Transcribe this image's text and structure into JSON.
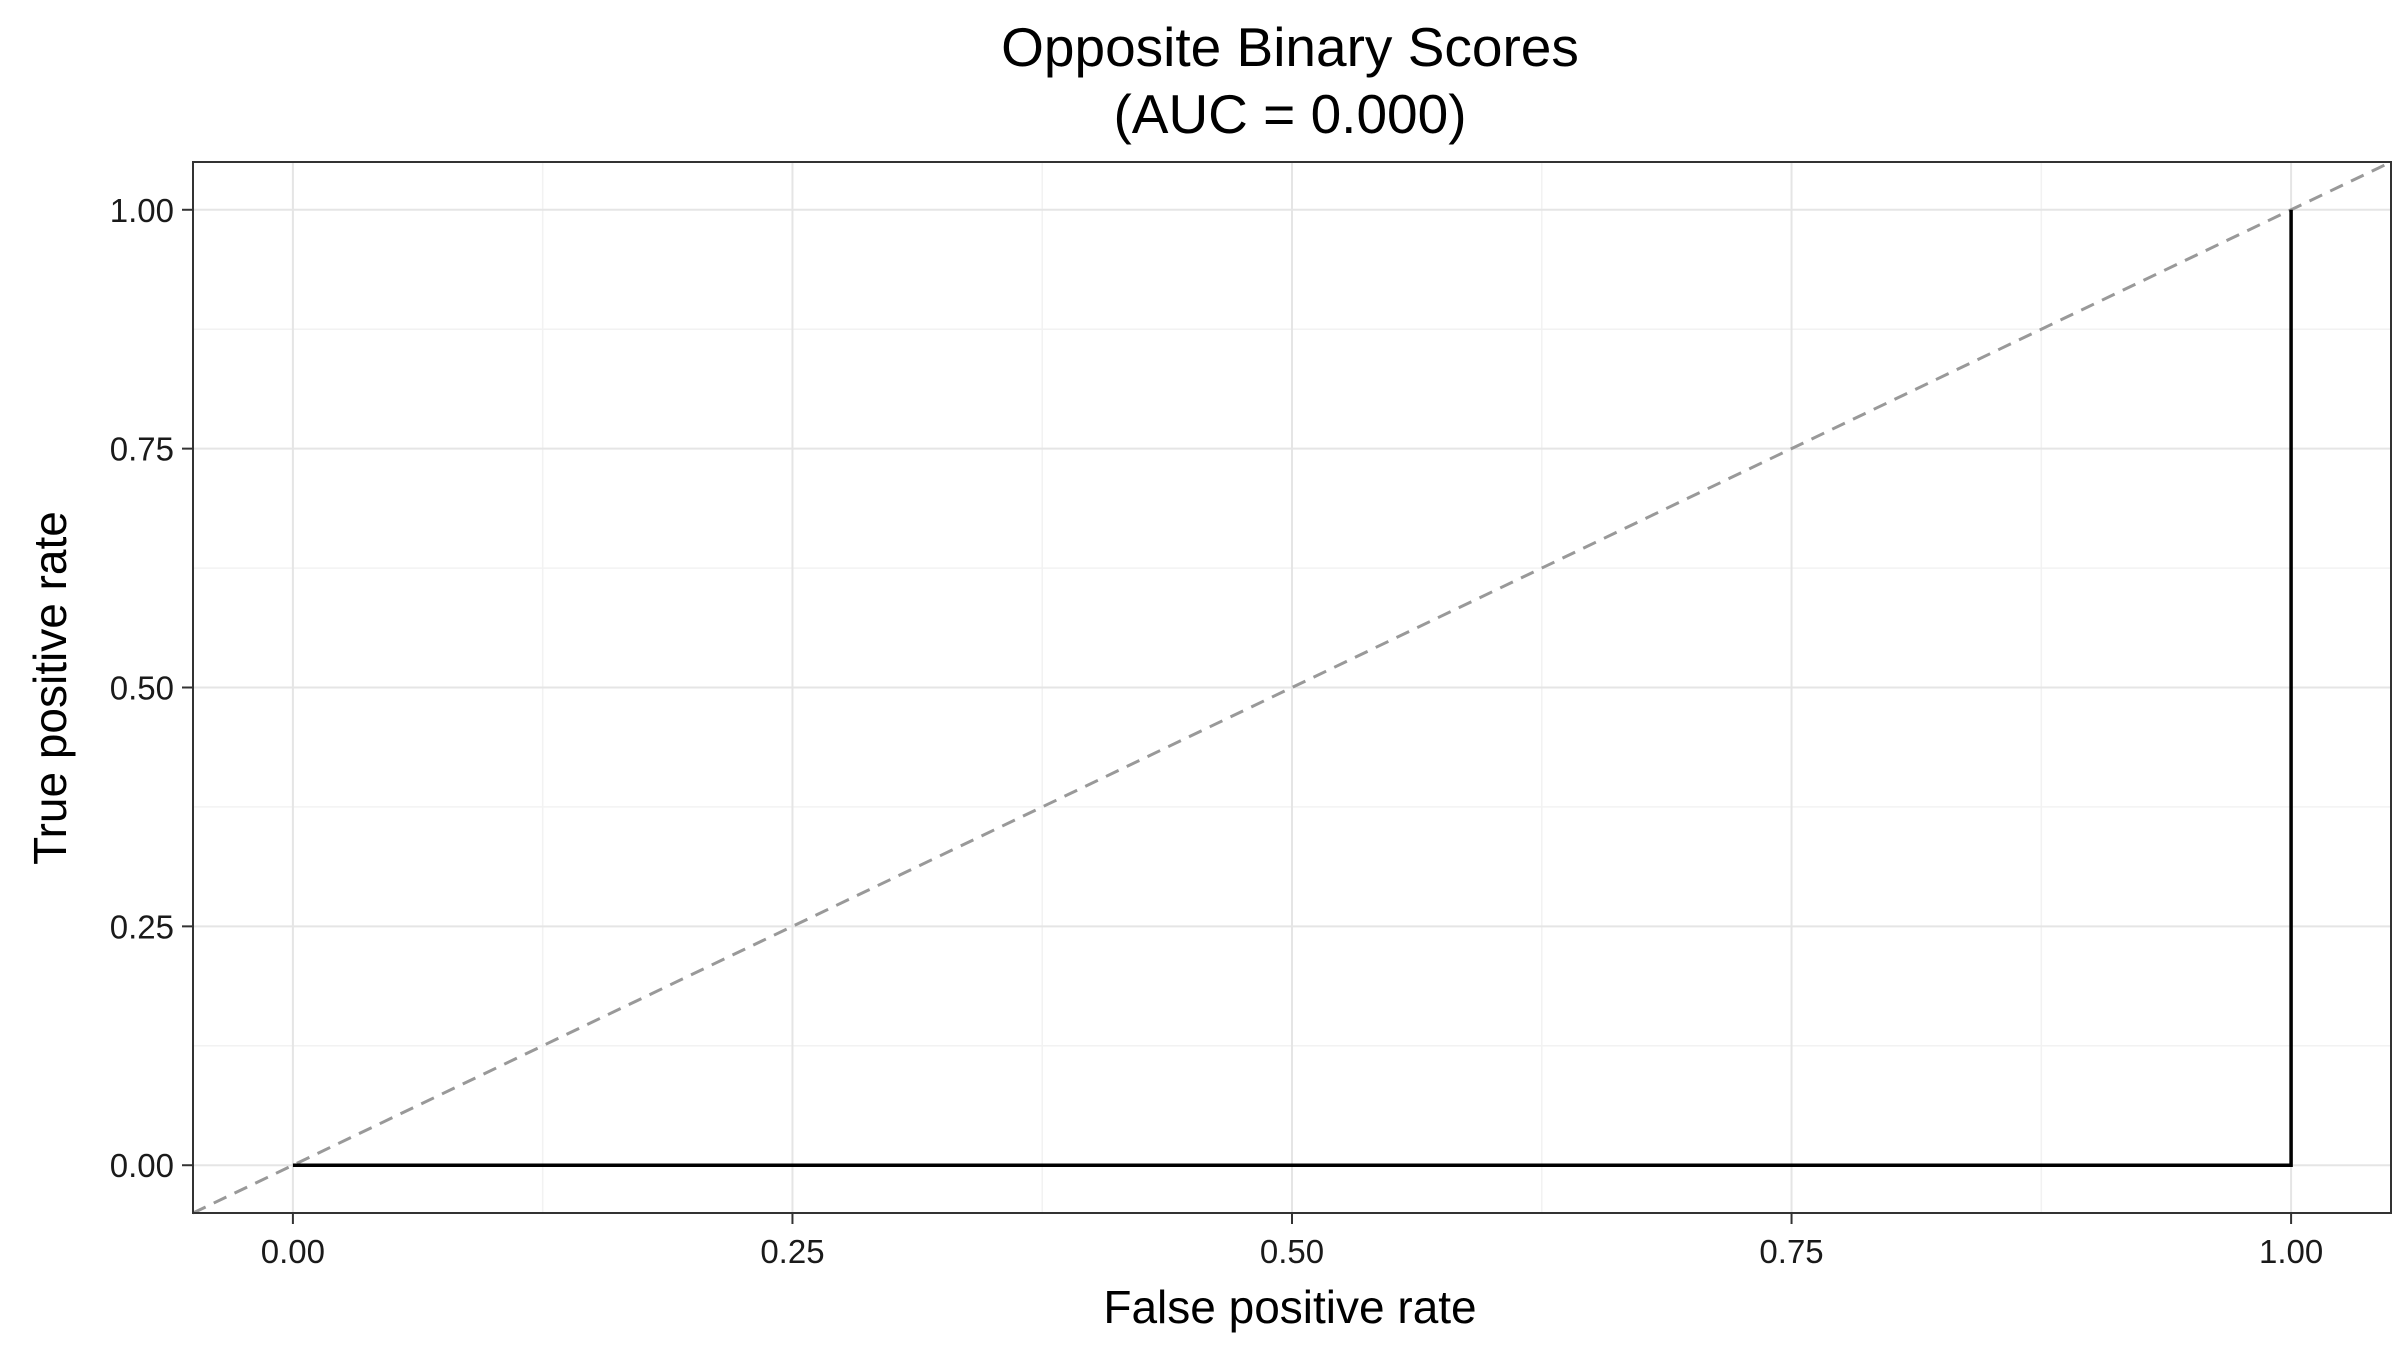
{
  "chart_data": {
    "type": "line",
    "title": "Opposite Binary Scores",
    "subtitle": "(AUC = 0.000)",
    "xlabel": "False positive rate",
    "ylabel": "True positive rate",
    "xlim": [
      -0.05,
      1.05
    ],
    "ylim": [
      -0.05,
      1.05
    ],
    "x_ticks": [
      "0.00",
      "0.25",
      "0.50",
      "0.75",
      "1.00"
    ],
    "y_ticks": [
      "0.00",
      "0.25",
      "0.50",
      "0.75",
      "1.00"
    ],
    "grid": true,
    "series": [
      {
        "x": [
          0,
          1,
          1
        ],
        "y": [
          0,
          0,
          1
        ],
        "color": "#000000"
      }
    ],
    "reference_line": {
      "intercept": 0,
      "slope": 1,
      "style": "dashed",
      "color": "#999999"
    }
  }
}
